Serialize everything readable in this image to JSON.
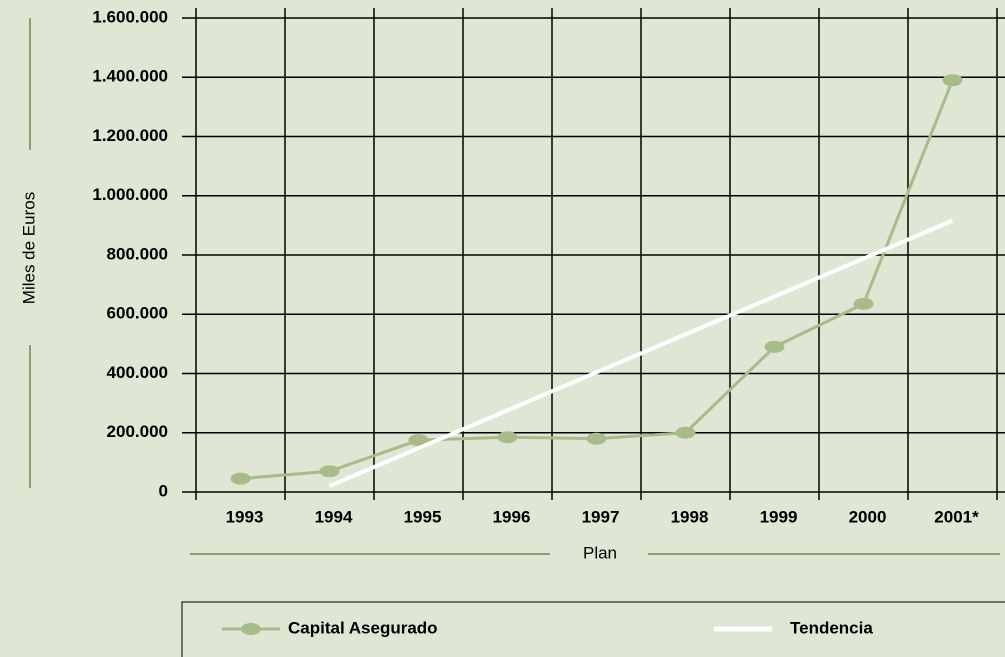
{
  "chart_data": {
    "type": "line",
    "y_label": "Miles de Euros",
    "x_label": "Plan",
    "categories": [
      "1993",
      "1994",
      "1995",
      "1996",
      "1997",
      "1998",
      "1999",
      "2000",
      "2001*"
    ],
    "series": [
      {
        "name": "Capital Asegurado",
        "color": "#a8bb8a",
        "markers": true,
        "values": [
          45000,
          70000,
          175000,
          185000,
          180000,
          200000,
          490000,
          635000,
          1390000
        ]
      },
      {
        "name": "Tendencia",
        "color": "#ffffff",
        "markers": false,
        "values": [
          null,
          20000,
          148000,
          276000,
          404000,
          532000,
          660000,
          788000,
          916000
        ]
      }
    ],
    "ylim": [
      0,
      1600000
    ],
    "yticks": [
      0,
      {
        "value": 200000,
        "label": "200.000"
      },
      {
        "value": 400000,
        "label": "400.000"
      },
      {
        "value": 600000,
        "label": "600.000"
      },
      {
        "value": 800000,
        "label": "800.000"
      },
      {
        "value": 1000000,
        "label": "1.000.000"
      },
      {
        "value": 1200000,
        "label": "1.200.000"
      },
      {
        "value": 1400000,
        "label": "1.400.000"
      },
      {
        "value": 1600000,
        "label": "1.600.000"
      }
    ],
    "grid": true,
    "legend": "bottom"
  }
}
